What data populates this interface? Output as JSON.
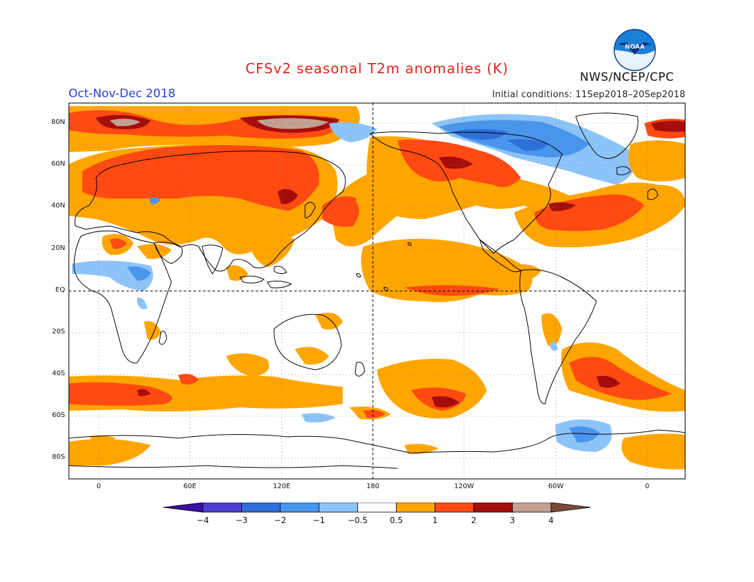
{
  "header": {
    "title": "CFSv2 seasonal T2m anomalies (K)",
    "period": "Oct-Nov-Dec 2018",
    "initial_conditions": "Initial conditions: 11Sep2018–20Sep2018",
    "agency": "NWS/NCEP/CPC",
    "logo_text": "NOAA"
  },
  "map": {
    "lat_labels": [
      "80N",
      "60N",
      "40N",
      "20N",
      "EQ",
      "20S",
      "40S",
      "60S",
      "80S"
    ],
    "lon_labels": [
      "0",
      "60E",
      "120E",
      "180",
      "120W",
      "60W",
      "0"
    ]
  },
  "colorbar": {
    "labels": [
      "−4",
      "−3",
      "−2",
      "−1",
      "−0.5",
      "0.5",
      "1",
      "2",
      "3",
      "4"
    ],
    "colors": [
      "#3a10a0",
      "#4b3fd0",
      "#2f6fd8",
      "#4a95ec",
      "#8cc4f8",
      "#ffffff",
      "#ffa500",
      "#ff4a12",
      "#a50d0d",
      "#c4a090",
      "#7a4a38"
    ]
  },
  "anomaly_colors": {
    "strong_cold": "#3a3ec8",
    "moderate_cold": "#2f6fd8",
    "cold": "#4a95ec",
    "slight_cold": "#8cc4f8",
    "slight_warm": "#ffa500",
    "warm": "#ff4a12",
    "very_warm": "#a50d0d",
    "extreme_warm": "#c4a090"
  }
}
